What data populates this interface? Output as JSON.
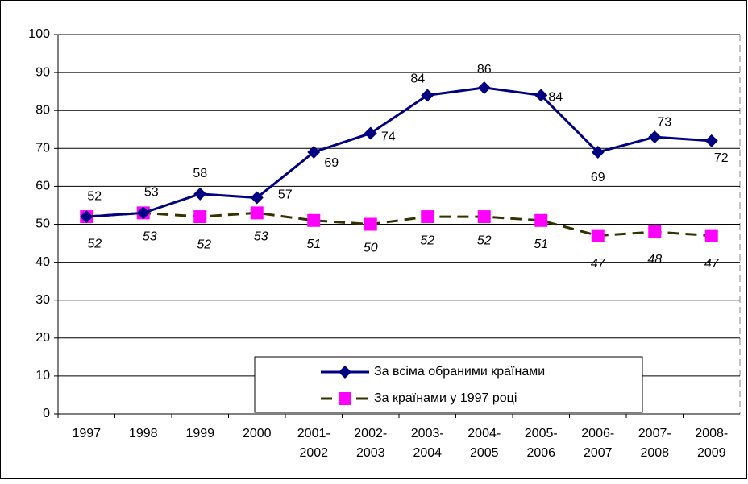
{
  "chart_data": {
    "type": "line",
    "categories": [
      "1997",
      "1998",
      "1999",
      "2000",
      "2001-\n2002",
      "2002-\n2003",
      "2003-\n2004",
      "2004-\n2005",
      "2005-\n2006",
      "2006-\n2007",
      "2007-\n2008",
      "2008-\n2009"
    ],
    "series": [
      {
        "name": "За всіма обраними країнами",
        "color": "#000080",
        "marker": "diamond",
        "marker_color": "#000080",
        "dash": false,
        "values": [
          52,
          53,
          58,
          57,
          69,
          74,
          84,
          86,
          84,
          69,
          73,
          72
        ]
      },
      {
        "name": "За країнами у 1997 році",
        "color": "#333300",
        "marker": "square",
        "marker_color": "#ff00ff",
        "dash": true,
        "values": [
          52,
          53,
          52,
          53,
          51,
          50,
          52,
          52,
          51,
          47,
          48,
          47
        ]
      }
    ],
    "ylim": [
      0,
      100
    ],
    "yticks": [
      0,
      10,
      20,
      30,
      40,
      50,
      60,
      70,
      80,
      90,
      100
    ],
    "grid": true,
    "legend": "bottom-center"
  }
}
